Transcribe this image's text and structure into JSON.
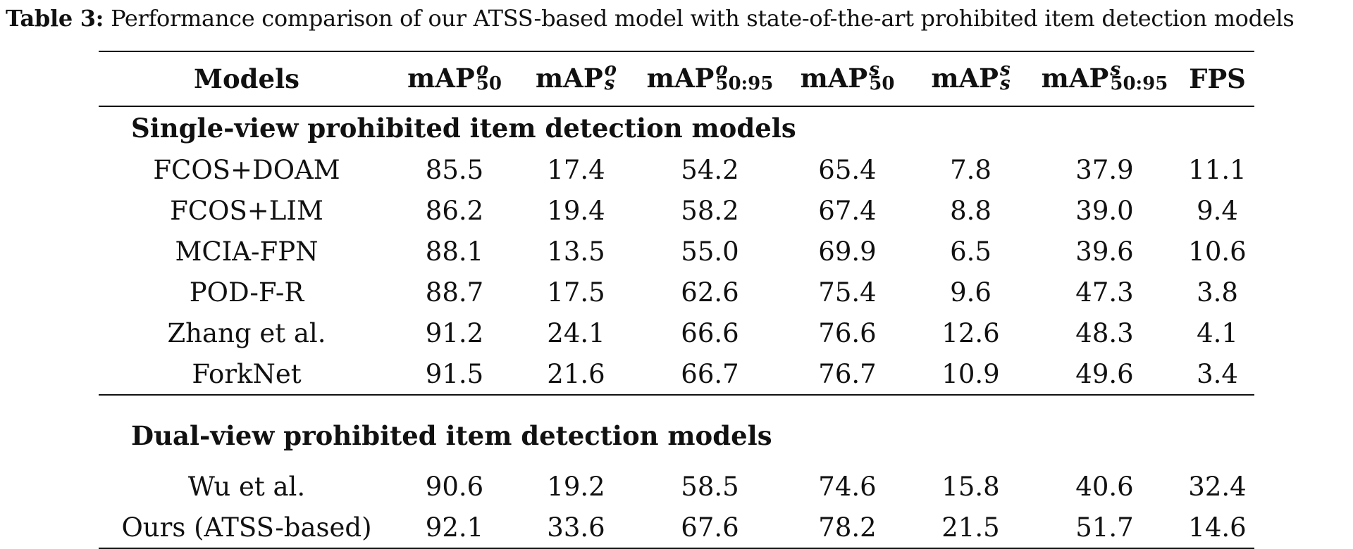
{
  "caption": {
    "label": "Table 3:",
    "text": "Performance comparison of our ATSS-based model with state-of-the-art prohibited item detection models"
  },
  "headers": [
    {
      "base": "Models",
      "sup": "",
      "sub": ""
    },
    {
      "base": "mAP",
      "sup": "o",
      "sub": "50"
    },
    {
      "base": "mAP",
      "sup": "o",
      "sub": "s"
    },
    {
      "base": "mAP",
      "sup": "o",
      "sub": "50:95"
    },
    {
      "base": "mAP",
      "sup": "s",
      "sub": "50"
    },
    {
      "base": "mAP",
      "sup": "s",
      "sub": "s"
    },
    {
      "base": "mAP",
      "sup": "s",
      "sub": "50:95"
    },
    {
      "base": "FPS",
      "sup": "",
      "sub": ""
    }
  ],
  "sections": [
    {
      "title": "Single-view prohibited item detection models",
      "rows": [
        [
          "FCOS+DOAM",
          "85.5",
          "17.4",
          "54.2",
          "65.4",
          "7.8",
          "37.9",
          "11.1"
        ],
        [
          "FCOS+LIM",
          "86.2",
          "19.4",
          "58.2",
          "67.4",
          "8.8",
          "39.0",
          "9.4"
        ],
        [
          "MCIA-FPN",
          "88.1",
          "13.5",
          "55.0",
          "69.9",
          "6.5",
          "39.6",
          "10.6"
        ],
        [
          "POD-F-R",
          "88.7",
          "17.5",
          "62.6",
          "75.4",
          "9.6",
          "47.3",
          "3.8"
        ],
        [
          "Zhang et al.",
          "91.2",
          "24.1",
          "66.6",
          "76.6",
          "12.6",
          "48.3",
          "4.1"
        ],
        [
          "ForkNet",
          "91.5",
          "21.6",
          "66.7",
          "76.7",
          "10.9",
          "49.6",
          "3.4"
        ]
      ]
    },
    {
      "title": "Dual-view prohibited item detection models",
      "rows": [
        [
          "Wu et al.",
          "90.6",
          "19.2",
          "58.5",
          "74.6",
          "15.8",
          "40.6",
          "32.4"
        ],
        [
          "Ours (ATSS-based)",
          "92.1",
          "33.6",
          "67.6",
          "78.2",
          "21.5",
          "51.7",
          "14.6"
        ]
      ]
    }
  ]
}
